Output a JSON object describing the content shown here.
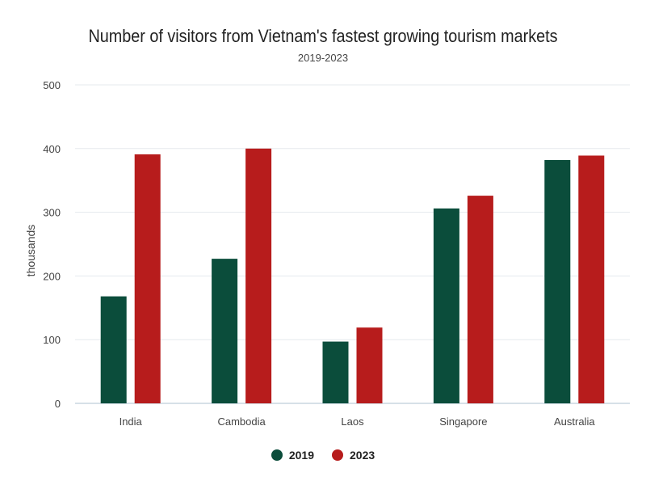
{
  "chart_data": {
    "type": "bar",
    "title": "Number of visitors from Vietnam's fastest growing tourism markets",
    "subtitle": "2019-2023",
    "ylabel": "thousands",
    "xlabel": "",
    "ylim": [
      0,
      500
    ],
    "yticks": [
      "0",
      "100",
      "200",
      "300",
      "400",
      "500"
    ],
    "categories": [
      "India",
      "Cambodia",
      "Laos",
      "Singapore",
      "Australia"
    ],
    "series": [
      {
        "name": "2019",
        "color": "#0b4d3b",
        "values": [
          168,
          227,
          97,
          306,
          382
        ]
      },
      {
        "name": "2023",
        "color": "#b71c1c",
        "values": [
          391,
          400,
          119,
          326,
          389
        ]
      }
    ],
    "grid": true,
    "legend_position": "bottom"
  }
}
